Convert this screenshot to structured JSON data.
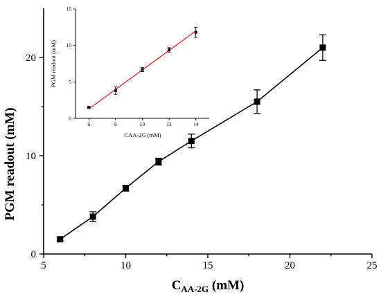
{
  "chart_data": [
    {
      "type": "line",
      "role": "main",
      "x": [
        6,
        8,
        10,
        12,
        14,
        18,
        22
      ],
      "series": [
        {
          "values": [
            1.5,
            3.8,
            6.7,
            9.4,
            11.5,
            15.5,
            21.0
          ],
          "errors": [
            0.15,
            0.5,
            0.3,
            0.35,
            0.7,
            1.2,
            1.3
          ],
          "marker": "square",
          "color": "#000000"
        }
      ],
      "xlabel_main": "C",
      "xlabel_sub": "AA-2G",
      "xlabel_unit": " (mM)",
      "ylabel": "PGM readout (mM)",
      "xlim": [
        5,
        25
      ],
      "ylim": [
        0,
        25
      ],
      "xticks": [
        "5",
        "10",
        "15",
        "20",
        "25"
      ],
      "yticks": [
        "0",
        "10",
        "20"
      ]
    },
    {
      "type": "scatter",
      "role": "inset",
      "x": [
        6,
        8,
        10,
        12,
        14
      ],
      "series": [
        {
          "values": [
            1.5,
            3.8,
            6.7,
            9.4,
            11.8
          ],
          "errors": [
            0.1,
            0.5,
            0.3,
            0.3,
            0.7
          ],
          "marker": "square",
          "color": "#000000"
        }
      ],
      "fit_line": {
        "x": [
          6,
          14
        ],
        "y": [
          1.3,
          12.0
        ],
        "color": "#ff0000"
      },
      "xlabel": "CAA-2G (mM)",
      "ylabel": "PGM readout (mM)",
      "xlim": [
        5,
        15
      ],
      "ylim": [
        0,
        15
      ],
      "xticks": [
        "6",
        "8",
        "10",
        "12",
        "14"
      ],
      "yticks": [
        "0",
        "5",
        "10",
        "15"
      ]
    }
  ]
}
